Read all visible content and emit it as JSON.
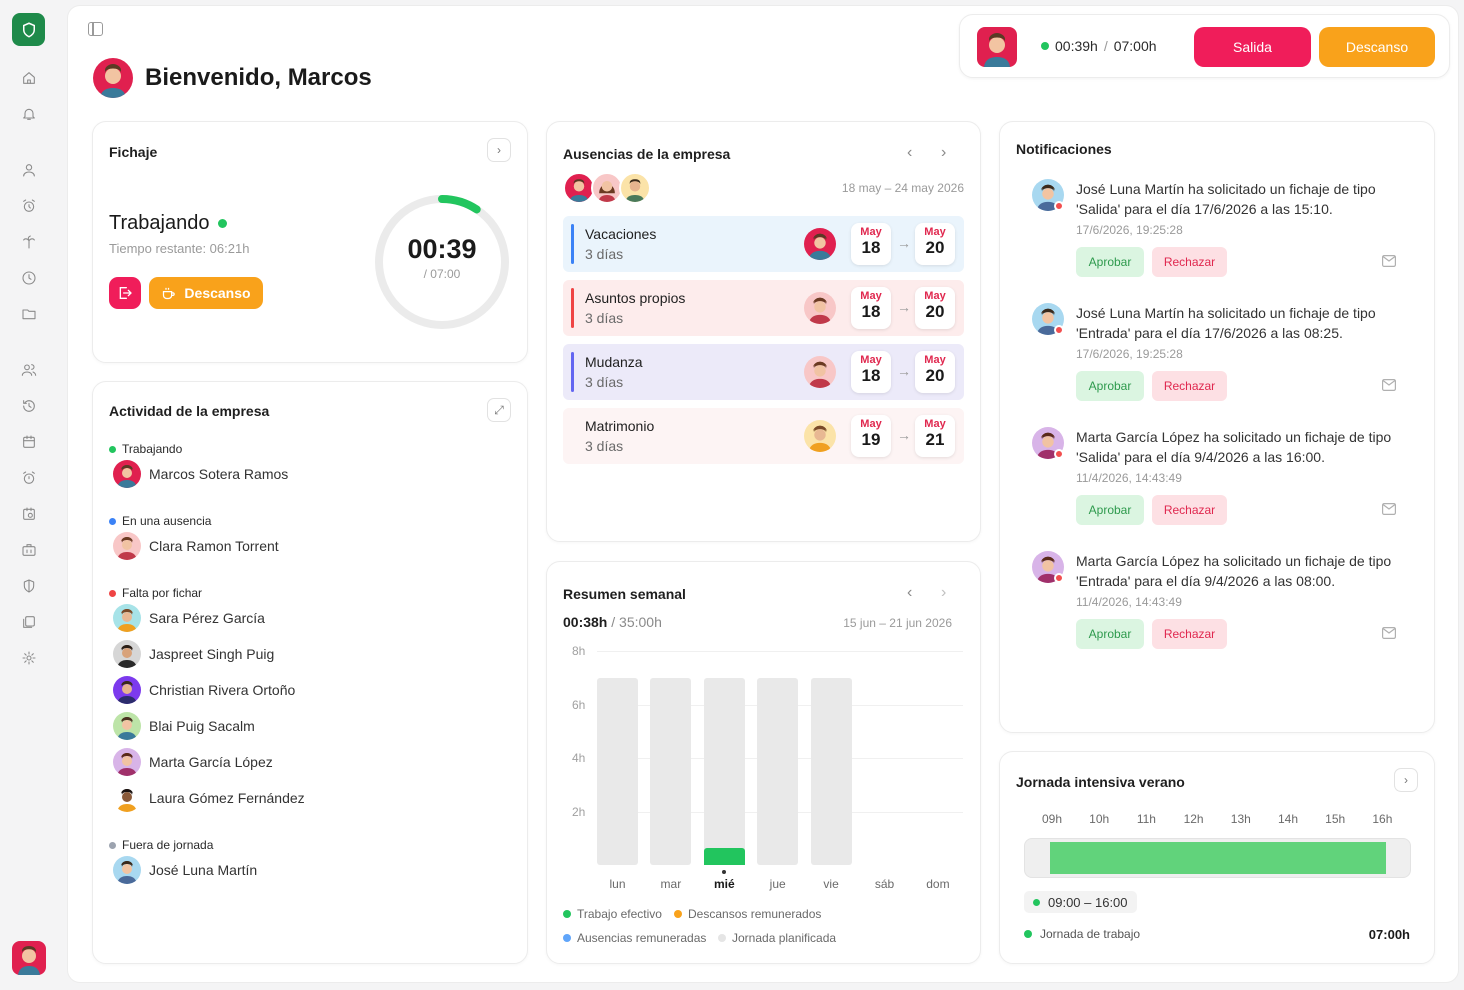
{
  "header": {
    "greeting": "Bienvenido, Marcos",
    "clock_time": "00:39h",
    "clock_sep": "/",
    "clock_total": "07:00h",
    "salida_label": "Salida",
    "descanso_label": "Descanso"
  },
  "fichaje": {
    "title": "Fichaje",
    "status": "Trabajando",
    "remaining": "Tiempo restante: 06:21h",
    "break_label": "Descanso",
    "elapsed": "00:39",
    "total": "/ 07:00",
    "progress_fraction": 0.093
  },
  "actividad": {
    "title": "Actividad de la empresa",
    "sections": [
      {
        "label": "Trabajando",
        "color": "#22c55e",
        "people": [
          "Marcos Sotera Ramos"
        ]
      },
      {
        "label": "En una ausencia",
        "color": "#3b82f6",
        "people": [
          "Clara Ramon Torrent"
        ]
      },
      {
        "label": "Falta por fichar",
        "color": "#ef4444",
        "people": [
          "Sara Pérez García",
          "Jaspreet Singh Puig",
          "Christian Rivera Ortoño",
          "Blai Puig Sacalm",
          "Marta García López",
          "Laura Gómez Fernández"
        ]
      },
      {
        "label": "Fuera de jornada",
        "color": "#9ca3af",
        "people": [
          "José Luna Martín"
        ]
      }
    ]
  },
  "ausencias": {
    "title": "Ausencias de la empresa",
    "range": "18 may – 24 may 2026",
    "items": [
      {
        "name": "Vacaciones",
        "days": "3 días",
        "from_m": "May",
        "from_d": "18",
        "to_m": "May",
        "to_d": "20",
        "bg": "#eaf4fc",
        "bar": "#3b82f6"
      },
      {
        "name": "Asuntos propios",
        "days": "3 días",
        "from_m": "May",
        "from_d": "18",
        "to_m": "May",
        "to_d": "20",
        "bg": "#fdecec",
        "bar": "#ef4444"
      },
      {
        "name": "Mudanza",
        "days": "3 días",
        "from_m": "May",
        "from_d": "18",
        "to_m": "May",
        "to_d": "20",
        "bg": "#eceaf9",
        "bar": "#6366f1"
      },
      {
        "name": "Matrimonio",
        "days": "3 días",
        "from_m": "May",
        "from_d": "19",
        "to_m": "May",
        "to_d": "21",
        "bg": "#fdf4f4",
        "bar": "#fdf4f4"
      }
    ]
  },
  "resumen": {
    "title": "Resumen semanal",
    "worked": "00:38h",
    "planned": "/ 35:00h",
    "range": "15 jun – 21 jun 2026",
    "legend": [
      "Trabajo efectivo",
      "Descansos remunerados",
      "Ausencias remuneradas",
      "Jornada planificada"
    ]
  },
  "chart_data": {
    "type": "bar",
    "categories": [
      "lun",
      "mar",
      "mié",
      "jue",
      "vie",
      "sáb",
      "dom"
    ],
    "series": [
      {
        "name": "Jornada planificada",
        "values": [
          7,
          7,
          7,
          7,
          7,
          0,
          0
        ]
      },
      {
        "name": "Trabajo efectivo",
        "values": [
          0,
          0,
          0.63,
          0,
          0,
          0,
          0
        ]
      }
    ],
    "y_ticks": [
      "8h",
      "6h",
      "4h",
      "2h"
    ],
    "ylim": [
      0,
      8
    ],
    "current_day": "mié"
  },
  "notificaciones": {
    "title": "Notificaciones",
    "approve_label": "Aprobar",
    "reject_label": "Rechazar",
    "items": [
      {
        "text": "José Luna Martín ha solicitado un fichaje de tipo 'Salida' para el día 17/6/2026 a las 15:10.",
        "time": "17/6/2026, 19:25:28"
      },
      {
        "text": "José Luna Martín ha solicitado un fichaje de tipo 'Entrada' para el día 17/6/2026 a las 08:25.",
        "time": "17/6/2026, 19:25:28"
      },
      {
        "text": "Marta García López ha solicitado un fichaje de tipo 'Salida' para el día 9/4/2026 a las 16:00.",
        "time": "11/4/2026, 14:43:49"
      },
      {
        "text": "Marta García López ha solicitado un fichaje de tipo 'Entrada' para el día 9/4/2026 a las 08:00.",
        "time": "11/4/2026, 14:43:49"
      }
    ]
  },
  "jornada": {
    "title": "Jornada intensiva verano",
    "hours": [
      "09h",
      "10h",
      "11h",
      "12h",
      "13h",
      "14h",
      "15h",
      "16h"
    ],
    "range": "09:00 – 16:00",
    "label": "Jornada de trabajo",
    "value": "07:00h"
  }
}
